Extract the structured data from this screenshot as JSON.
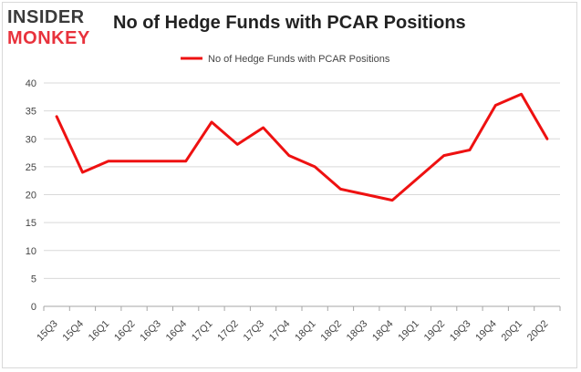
{
  "logo": {
    "line1": "INSIDER",
    "line2": "MONKEY"
  },
  "chart_data": {
    "type": "line",
    "title": "No of Hedge Funds with PCAR Positions",
    "xlabel": "",
    "ylabel": "",
    "categories": [
      "15Q3",
      "15Q4",
      "16Q1",
      "16Q2",
      "16Q3",
      "16Q4",
      "17Q1",
      "17Q2",
      "17Q3",
      "17Q4",
      "18Q1",
      "18Q2",
      "18Q3",
      "18Q4",
      "19Q1",
      "19Q2",
      "19Q3",
      "19Q4",
      "20Q1",
      "20Q2"
    ],
    "series": [
      {
        "name": "No of Hedge Funds with PCAR Positions",
        "values": [
          34,
          24,
          26,
          26,
          26,
          26,
          33,
          29,
          32,
          27,
          25,
          21,
          20,
          19,
          23,
          27,
          28,
          36,
          38,
          30
        ]
      }
    ],
    "ylim": [
      0,
      40
    ],
    "yticks": [
      0,
      5,
      10,
      15,
      20,
      25,
      30,
      35,
      40
    ],
    "grid": true,
    "legend": "top-center",
    "colors": {
      "line": "#ee1111",
      "grid": "#d9d9d9",
      "axis": "#a6a6a6",
      "text": "#444444"
    }
  }
}
